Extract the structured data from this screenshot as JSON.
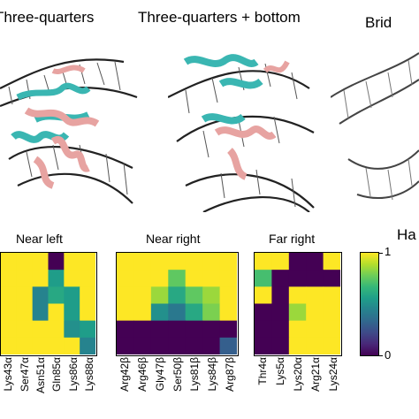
{
  "titles": {
    "left": "Three-quarters",
    "middle": "Three-quarters + bottom",
    "right": "Brid"
  },
  "right_header": "Ha",
  "colors": {
    "dna": "#1a1a1a",
    "protein_teal": "#3ab6b2",
    "protein_pink": "#e7a3a1"
  },
  "chart_data": [
    {
      "type": "heatmap",
      "title": "Near left",
      "columns": [
        "Lys43α",
        "Ser47α",
        "Asn51α",
        "Gln85α",
        "Lys86α",
        "Lys88α"
      ],
      "rows": 6,
      "values": [
        [
          1,
          1,
          1,
          0.0,
          1,
          1
        ],
        [
          1,
          1,
          1,
          0.55,
          1,
          1
        ],
        [
          1,
          1,
          0.45,
          0.6,
          0.55,
          1
        ],
        [
          1,
          1,
          0.45,
          1,
          0.55,
          1
        ],
        [
          1,
          1,
          1,
          1,
          0.5,
          0.55
        ],
        [
          1,
          1,
          1,
          1,
          1,
          0.45
        ]
      ]
    },
    {
      "type": "heatmap",
      "title": "Near right",
      "columns": [
        "Arg42β",
        "Arg46β",
        "Gly47β",
        "Ser50β",
        "Lys81β",
        "Lys84β",
        "Arg87β"
      ],
      "rows": 6,
      "values": [
        [
          1,
          1,
          1,
          1,
          1,
          1,
          1
        ],
        [
          1,
          1,
          1,
          0.75,
          1,
          1,
          1
        ],
        [
          1,
          1,
          0.85,
          0.6,
          0.75,
          0.85,
          1
        ],
        [
          1,
          1,
          0.5,
          0.4,
          0.6,
          0.8,
          1
        ],
        [
          0.0,
          0.0,
          0.0,
          0.0,
          0.0,
          0.0,
          0.0
        ],
        [
          0.0,
          0.0,
          0.0,
          0.0,
          0.0,
          0.0,
          0.3
        ]
      ]
    },
    {
      "type": "heatmap",
      "title": "Far right",
      "columns": [
        "Thr4α",
        "Lys5α",
        "Lys20α",
        "Arg21α",
        "Lys24α"
      ],
      "rows": 6,
      "values": [
        [
          1,
          1,
          0.0,
          0.0,
          1
        ],
        [
          0.7,
          0.0,
          0.0,
          0.0,
          0.0
        ],
        [
          1,
          0.0,
          1,
          1,
          1
        ],
        [
          0.0,
          0.0,
          0.85,
          1,
          1
        ],
        [
          0.0,
          0.0,
          1,
          1,
          1
        ],
        [
          0.0,
          0.0,
          1,
          1,
          1
        ]
      ]
    }
  ],
  "colorbar": {
    "colormap": "viridis",
    "max_label": "1",
    "min_label": "0",
    "range": [
      0,
      1
    ]
  }
}
